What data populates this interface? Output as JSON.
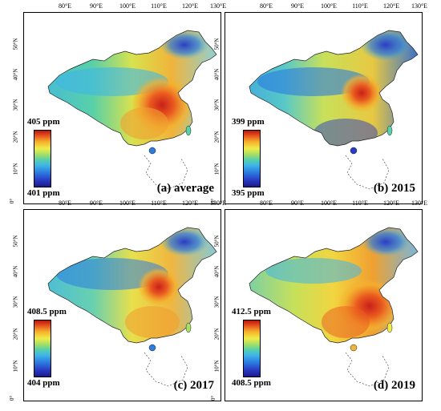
{
  "longitude_ticks": [
    "80°E",
    "90°E",
    "100°E",
    "110°E",
    "120°E",
    "130°E"
  ],
  "latitude_ticks": [
    "50°N",
    "40°N",
    "30°N",
    "20°N",
    "10°N",
    "0°"
  ],
  "panels": [
    {
      "label": "(a) average",
      "legend_max": "405 ppm",
      "legend_min": "401 ppm"
    },
    {
      "label": "(b) 2015",
      "legend_max": "399 ppm",
      "legend_min": "395 ppm"
    },
    {
      "label": "(c) 2017",
      "legend_max": "408.5 ppm",
      "legend_min": "404 ppm"
    },
    {
      "label": "(d) 2019",
      "legend_max": "412.5 ppm",
      "legend_min": "408.5 ppm"
    }
  ],
  "colormap": [
    "#1b1a8c",
    "#2a3cc4",
    "#2b7be0",
    "#3fb5e8",
    "#58d0a8",
    "#a8e062",
    "#f0ec4a",
    "#f5b12c",
    "#ea5a1f",
    "#b81612"
  ]
}
